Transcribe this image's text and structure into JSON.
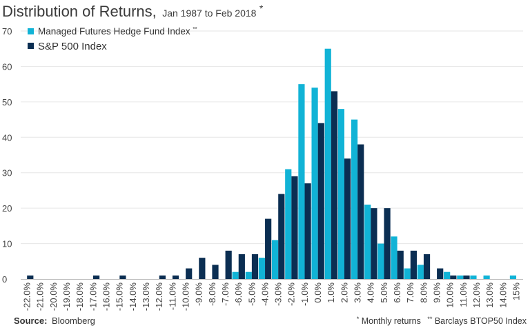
{
  "title": {
    "main": "Distribution of Returns,",
    "sub": "Jan 1987 to Feb 2018",
    "sub_mark": "*"
  },
  "legend": {
    "items": [
      {
        "name": "Managed Futures Hedge Fund Index",
        "mark": "**",
        "color": "#11b3d6"
      },
      {
        "name": "S&P 500 Index",
        "mark": "",
        "color": "#0b2e52"
      }
    ],
    "placement": "top-left"
  },
  "footer": {
    "source_label": "Source:",
    "source_value": "Bloomberg",
    "note1_mark": "*",
    "note1_text": "Monthly returns",
    "note2_mark": "**",
    "note2_text": "Barclays BTOP50 Index"
  },
  "chart_data": {
    "type": "bar",
    "categories": [
      "-22.0%",
      "-21.0%",
      "-20.0%",
      "-19.0%",
      "-18.0%",
      "-17.0%",
      "-16.0%",
      "-15.0%",
      "-14.0%",
      "-13.0%",
      "-12.0%",
      "-11.0%",
      "-10.0%",
      "-9.0%",
      "-8.0%",
      "-7.0%",
      "-6.0%",
      "-5.0%",
      "-4.0%",
      "-3.0%",
      "-2.0%",
      "-1.0%",
      "0.0%",
      "1.0%",
      "2.0%",
      "3.0%",
      "4.0%",
      "5.0%",
      "6.0%",
      "7.0%",
      "8.0%",
      "9.0%",
      "10.0%",
      "11.0%",
      "12.0%",
      "13.0%",
      "14.0%",
      "15%"
    ],
    "series": [
      {
        "name": "Managed Futures Hedge Fund Index",
        "color": "#11b3d6",
        "values": [
          0,
          0,
          0,
          0,
          0,
          0,
          0,
          0,
          0,
          0,
          0,
          0,
          0,
          0,
          0,
          0,
          2,
          2,
          6,
          11,
          31,
          55,
          54,
          65,
          48,
          45,
          21,
          10,
          12,
          3,
          4,
          0,
          2,
          1,
          1,
          1,
          0,
          1
        ]
      },
      {
        "name": "S&P 500 Index",
        "color": "#0b2e52",
        "values": [
          1,
          0,
          0,
          0,
          0,
          1,
          0,
          1,
          0,
          0,
          1,
          1,
          3,
          6,
          4,
          8,
          7,
          7,
          17,
          24,
          29,
          27,
          44,
          53,
          34,
          38,
          20,
          20,
          8,
          8,
          7,
          3,
          1,
          1,
          0,
          0,
          0,
          0
        ]
      }
    ],
    "y_ticks": [
      0,
      10,
      20,
      30,
      40,
      50,
      60,
      70
    ],
    "ylim": [
      0,
      70
    ],
    "grid": true
  }
}
